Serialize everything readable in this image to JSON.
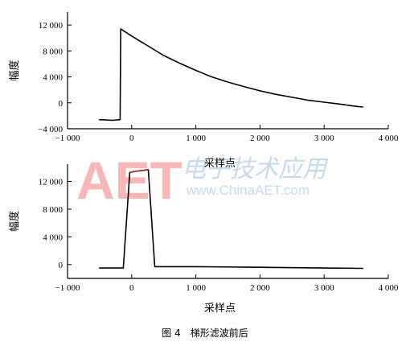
{
  "chart_data": [
    {
      "type": "line",
      "title": "",
      "xlabel": "采样点",
      "ylabel": "幅度",
      "xlim": [
        -1000,
        4000
      ],
      "ylim": [
        -4000,
        14000
      ],
      "xticks": [
        -1000,
        0,
        1000,
        2000,
        3000,
        4000
      ],
      "xtick_labels": [
        "−1 000",
        "0",
        "1 000",
        "2 000",
        "3 000",
        "4 000"
      ],
      "yticks": [
        -4000,
        0,
        4000,
        8000,
        12000
      ],
      "ytick_labels": [
        "−4 000",
        "0",
        "4 000",
        "8 000",
        "12 000"
      ],
      "grid": false,
      "series": [
        {
          "color": "#000000",
          "x": [
            -500,
            -300,
            -180,
            -170,
            0,
            250,
            500,
            750,
            1000,
            1250,
            1500,
            1750,
            2000,
            2250,
            2500,
            2750,
            3000,
            3250,
            3500,
            3600
          ],
          "y": [
            -2600,
            -2700,
            -2600,
            11400,
            10300,
            8800,
            7300,
            6100,
            5000,
            4000,
            3200,
            2500,
            1850,
            1300,
            850,
            400,
            100,
            -200,
            -550,
            -650
          ]
        }
      ]
    },
    {
      "type": "line",
      "title": "",
      "xlabel": "采样点",
      "ylabel": "幅度",
      "xlim": [
        -1000,
        4000
      ],
      "ylim": [
        -2000,
        14500
      ],
      "xticks": [
        -1000,
        0,
        1000,
        2000,
        3000,
        4000
      ],
      "xtick_labels": [
        "−1 000",
        "0",
        "1 000",
        "2 000",
        "3 000",
        "4 000"
      ],
      "yticks": [
        0,
        4000,
        8000,
        12000
      ],
      "ytick_labels": [
        "0",
        "4 000",
        "8 000",
        "12 000"
      ],
      "grid": false,
      "series": [
        {
          "color": "#000000",
          "x": [
            -500,
            -130,
            -30,
            50,
            260,
            360,
            1000,
            2000,
            3000,
            3600
          ],
          "y": [
            -500,
            -500,
            13300,
            13450,
            13700,
            -300,
            -300,
            -400,
            -500,
            -550
          ]
        },
        {
          "color": "#cc2222",
          "x": [
            -30,
            50,
            150,
            260
          ],
          "y": [
            13300,
            13450,
            13600,
            13700
          ]
        }
      ]
    }
  ],
  "caption": "图 4　梯形滤波前后",
  "watermark": {
    "logo_text": "AET",
    "url_text": "www.ChinaAET.com",
    "cn_text": "电子技术应用",
    "logo_color": "#f4a0a0",
    "text_color": "#b8cbe6"
  }
}
